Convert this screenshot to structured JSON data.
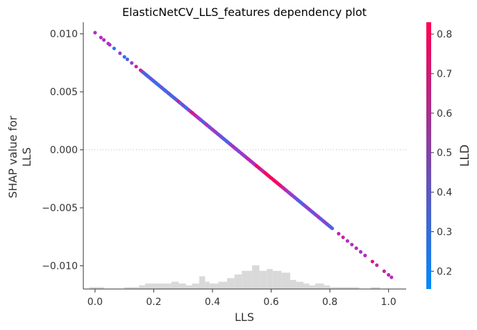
{
  "chart_data": {
    "type": "scatter",
    "title": "ElasticNetCV_LLS_features dependency plot",
    "xlabel": "LLS",
    "ylabel_lines": [
      "SHAP value for",
      "LLS"
    ],
    "xlim": [
      -0.04,
      1.06
    ],
    "ylim": [
      -0.012,
      0.011
    ],
    "x_ticks": [
      0.0,
      0.2,
      0.4,
      0.6,
      0.8,
      1.0
    ],
    "x_tick_labels": [
      "0.0",
      "0.2",
      "0.4",
      "0.6",
      "0.8",
      "1.0"
    ],
    "y_ticks": [
      0.01,
      0.005,
      0.0,
      -0.005,
      -0.01
    ],
    "y_tick_labels": [
      "0.010",
      "0.005",
      "0.000",
      "−0.005",
      "−0.010"
    ],
    "zero_line": true,
    "line": {
      "slope": -0.02088,
      "intercept": 0.0101
    },
    "points": [
      {
        "x": 0.0,
        "c": 0.5
      },
      {
        "x": 0.02,
        "c": 0.52
      },
      {
        "x": 0.03,
        "c": 0.5
      },
      {
        "x": 0.045,
        "c": 0.55
      },
      {
        "x": 0.05,
        "c": 0.48
      },
      {
        "x": 0.065,
        "c": 0.22
      },
      {
        "x": 0.085,
        "c": 0.45
      },
      {
        "x": 0.1,
        "c": 0.25
      },
      {
        "x": 0.11,
        "c": 0.3
      },
      {
        "x": 0.125,
        "c": 0.45
      },
      {
        "x": 0.14,
        "c": 0.62
      },
      {
        "x": 0.155,
        "c": 0.58
      },
      {
        "x": 0.165,
        "c": 0.3
      },
      {
        "x": 0.175,
        "c": 0.35
      },
      {
        "x": 0.18,
        "c": 0.25
      },
      {
        "x": 0.19,
        "c": 0.4
      },
      {
        "x": 0.2,
        "c": 0.28
      },
      {
        "x": 0.21,
        "c": 0.33
      },
      {
        "x": 0.215,
        "c": 0.22
      },
      {
        "x": 0.225,
        "c": 0.38
      },
      {
        "x": 0.235,
        "c": 0.26
      },
      {
        "x": 0.24,
        "c": 0.3
      },
      {
        "x": 0.25,
        "c": 0.35
      },
      {
        "x": 0.26,
        "c": 0.28
      },
      {
        "x": 0.27,
        "c": 0.32
      },
      {
        "x": 0.28,
        "c": 0.36
      },
      {
        "x": 0.285,
        "c": 0.72
      },
      {
        "x": 0.29,
        "c": 0.3
      },
      {
        "x": 0.3,
        "c": 0.4
      },
      {
        "x": 0.31,
        "c": 0.25
      },
      {
        "x": 0.32,
        "c": 0.45
      },
      {
        "x": 0.33,
        "c": 0.68
      },
      {
        "x": 0.34,
        "c": 0.55
      },
      {
        "x": 0.35,
        "c": 0.5
      },
      {
        "x": 0.36,
        "c": 0.42
      },
      {
        "x": 0.37,
        "c": 0.3
      },
      {
        "x": 0.38,
        "c": 0.52
      },
      {
        "x": 0.39,
        "c": 0.35
      },
      {
        "x": 0.4,
        "c": 0.48
      },
      {
        "x": 0.41,
        "c": 0.45
      },
      {
        "x": 0.42,
        "c": 0.4
      },
      {
        "x": 0.43,
        "c": 0.38
      },
      {
        "x": 0.44,
        "c": 0.32
      },
      {
        "x": 0.45,
        "c": 0.3
      },
      {
        "x": 0.46,
        "c": 0.4
      },
      {
        "x": 0.47,
        "c": 0.55
      },
      {
        "x": 0.48,
        "c": 0.45
      },
      {
        "x": 0.49,
        "c": 0.4
      },
      {
        "x": 0.5,
        "c": 0.5
      },
      {
        "x": 0.51,
        "c": 0.42
      },
      {
        "x": 0.52,
        "c": 0.6
      },
      {
        "x": 0.53,
        "c": 0.55
      },
      {
        "x": 0.54,
        "c": 0.5
      },
      {
        "x": 0.55,
        "c": 0.78
      },
      {
        "x": 0.56,
        "c": 0.7
      },
      {
        "x": 0.565,
        "c": 0.62
      },
      {
        "x": 0.57,
        "c": 0.55
      },
      {
        "x": 0.58,
        "c": 0.8
      },
      {
        "x": 0.59,
        "c": 0.75
      },
      {
        "x": 0.6,
        "c": 0.82
      },
      {
        "x": 0.61,
        "c": 0.78
      },
      {
        "x": 0.62,
        "c": 0.8
      },
      {
        "x": 0.63,
        "c": 0.72
      },
      {
        "x": 0.64,
        "c": 0.6
      },
      {
        "x": 0.65,
        "c": 0.55
      },
      {
        "x": 0.66,
        "c": 0.45
      },
      {
        "x": 0.67,
        "c": 0.5
      },
      {
        "x": 0.68,
        "c": 0.4
      },
      {
        "x": 0.69,
        "c": 0.35
      },
      {
        "x": 0.7,
        "c": 0.3
      },
      {
        "x": 0.71,
        "c": 0.38
      },
      {
        "x": 0.72,
        "c": 0.42
      },
      {
        "x": 0.73,
        "c": 0.45
      },
      {
        "x": 0.74,
        "c": 0.35
      },
      {
        "x": 0.75,
        "c": 0.4
      },
      {
        "x": 0.76,
        "c": 0.5
      },
      {
        "x": 0.77,
        "c": 0.3
      },
      {
        "x": 0.78,
        "c": 0.45
      },
      {
        "x": 0.79,
        "c": 0.38
      },
      {
        "x": 0.8,
        "c": 0.32
      },
      {
        "x": 0.83,
        "c": 0.55
      },
      {
        "x": 0.845,
        "c": 0.58
      },
      {
        "x": 0.86,
        "c": 0.52
      },
      {
        "x": 0.875,
        "c": 0.5
      },
      {
        "x": 0.89,
        "c": 0.55
      },
      {
        "x": 0.905,
        "c": 0.48
      },
      {
        "x": 0.92,
        "c": 0.52
      },
      {
        "x": 0.945,
        "c": 0.72
      },
      {
        "x": 0.96,
        "c": 0.55
      },
      {
        "x": 0.985,
        "c": 0.62
      },
      {
        "x": 1.0,
        "c": 0.55
      },
      {
        "x": 1.01,
        "c": 0.5
      }
    ],
    "colorbar": {
      "label": "LLD",
      "min": 0.155,
      "max": 0.83,
      "ticks": [
        0.2,
        0.3,
        0.4,
        0.5,
        0.6,
        0.7,
        0.8
      ],
      "tick_labels": [
        "0.2",
        "0.3",
        "0.4",
        "0.5",
        "0.6",
        "0.7",
        "0.8"
      ],
      "color_low": "#008afb",
      "color_high": "#ff0052"
    },
    "histogram": {
      "color": "#d9d9d9",
      "bins": [
        {
          "x0": -0.02,
          "x1": 0.03,
          "h": 1
        },
        {
          "x0": 0.1,
          "x1": 0.15,
          "h": 1
        },
        {
          "x0": 0.15,
          "x1": 0.17,
          "h": 2
        },
        {
          "x0": 0.17,
          "x1": 0.26,
          "h": 3
        },
        {
          "x0": 0.26,
          "x1": 0.285,
          "h": 4
        },
        {
          "x0": 0.285,
          "x1": 0.31,
          "h": 3
        },
        {
          "x0": 0.31,
          "x1": 0.33,
          "h": 2
        },
        {
          "x0": 0.33,
          "x1": 0.355,
          "h": 3
        },
        {
          "x0": 0.355,
          "x1": 0.375,
          "h": 7
        },
        {
          "x0": 0.375,
          "x1": 0.39,
          "h": 4
        },
        {
          "x0": 0.39,
          "x1": 0.42,
          "h": 3
        },
        {
          "x0": 0.42,
          "x1": 0.45,
          "h": 4
        },
        {
          "x0": 0.45,
          "x1": 0.475,
          "h": 6
        },
        {
          "x0": 0.475,
          "x1": 0.5,
          "h": 8
        },
        {
          "x0": 0.5,
          "x1": 0.535,
          "h": 10
        },
        {
          "x0": 0.535,
          "x1": 0.56,
          "h": 13
        },
        {
          "x0": 0.56,
          "x1": 0.585,
          "h": 10
        },
        {
          "x0": 0.585,
          "x1": 0.605,
          "h": 11
        },
        {
          "x0": 0.605,
          "x1": 0.635,
          "h": 10
        },
        {
          "x0": 0.635,
          "x1": 0.665,
          "h": 9
        },
        {
          "x0": 0.665,
          "x1": 0.685,
          "h": 5
        },
        {
          "x0": 0.685,
          "x1": 0.71,
          "h": 4
        },
        {
          "x0": 0.71,
          "x1": 0.73,
          "h": 3
        },
        {
          "x0": 0.73,
          "x1": 0.75,
          "h": 2
        },
        {
          "x0": 0.75,
          "x1": 0.78,
          "h": 3
        },
        {
          "x0": 0.78,
          "x1": 0.8,
          "h": 2
        },
        {
          "x0": 0.8,
          "x1": 0.9,
          "h": 1
        },
        {
          "x0": 0.94,
          "x1": 0.97,
          "h": 1
        }
      ]
    }
  }
}
